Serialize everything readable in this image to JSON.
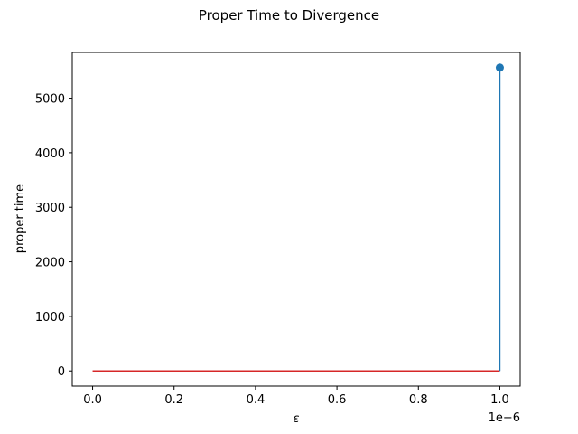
{
  "chart_data": {
    "type": "stem",
    "title": "Proper Time to Divergence",
    "xlabel": "ε",
    "ylabel": "proper time",
    "x_offset_label": "1e−6",
    "x": [
      1.0
    ],
    "values": [
      5560
    ],
    "baseline": {
      "x_start": 0.0,
      "x_end": 1.0,
      "y": 0,
      "color": "#d62728"
    },
    "series_color": "#1f77b4",
    "xlim": [
      -0.05,
      1.05
    ],
    "ylim": [
      -278,
      5838
    ],
    "xticks": [
      0.0,
      0.2,
      0.4,
      0.6,
      0.8,
      1.0
    ],
    "xtick_labels": [
      "0.0",
      "0.2",
      "0.4",
      "0.6",
      "0.8",
      "1.0"
    ],
    "yticks": [
      0,
      1000,
      2000,
      3000,
      4000,
      5000
    ],
    "ytick_labels": [
      "0",
      "1000",
      "2000",
      "3000",
      "4000",
      "5000"
    ],
    "grid": false
  }
}
